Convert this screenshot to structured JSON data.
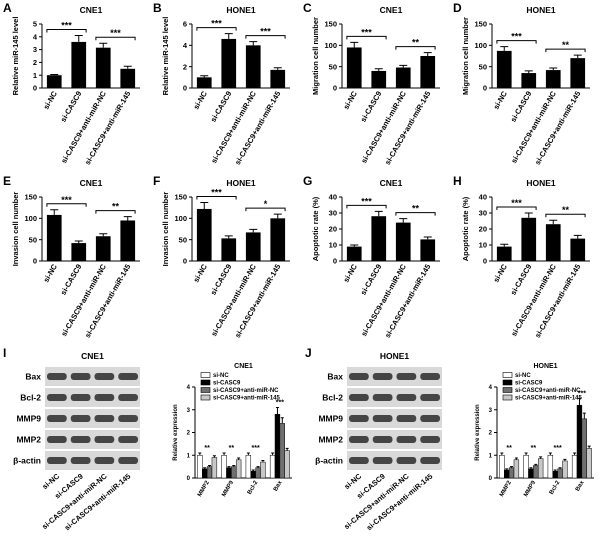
{
  "chart_data": [
    {
      "panel": "A",
      "type": "bar",
      "title": "CNE1",
      "y_label": "Relative miR-145 level",
      "categories": [
        "si-NC",
        "si-CASC9",
        "si-CASC9+anti-miR-NC",
        "si-CASC9+anti-miR-145"
      ],
      "values": [
        1,
        3.6,
        3.15,
        1.5
      ],
      "errors": [
        0.05,
        0.5,
        0.35,
        0.2
      ],
      "color": "#000000",
      "ylim": [
        0,
        5
      ],
      "yticks": [
        0,
        1,
        2,
        3,
        4,
        5
      ],
      "comparisons": [
        {
          "pair": [
            "si-NC",
            "si-CASC9"
          ],
          "label": "***"
        },
        {
          "pair": [
            "si-CASC9+anti-miR-NC",
            "si-CASC9+anti-miR-145"
          ],
          "label": "***"
        }
      ]
    },
    {
      "panel": "B",
      "type": "bar",
      "title": "HONE1",
      "y_label": "Relative miR-145 level",
      "categories": [
        "si-NC",
        "si-CASC9",
        "si-CASC9+anti-miR-NC",
        "si-CASC9+anti-miR-145"
      ],
      "values": [
        1,
        4.6,
        4.0,
        1.7
      ],
      "errors": [
        0.15,
        0.5,
        0.35,
        0.2
      ],
      "color": "#000000",
      "ylim": [
        0,
        6
      ],
      "yticks": [
        0,
        2,
        4,
        6
      ],
      "comparisons": [
        {
          "pair": [
            "si-NC",
            "si-CASC9"
          ],
          "label": "***"
        },
        {
          "pair": [
            "si-CASC9+anti-miR-NC",
            "si-CASC9+anti-miR-145"
          ],
          "label": "***"
        }
      ]
    },
    {
      "panel": "C",
      "type": "bar",
      "title": "CNE1",
      "y_label": "Migration cell number",
      "categories": [
        "si-NC",
        "si-CASC9",
        "si-CASC9+anti-miR-NC",
        "si-CASC9+anti-miR-145"
      ],
      "values": [
        95,
        40,
        48,
        75
      ],
      "errors": [
        12,
        5,
        5,
        8
      ],
      "color": "#000000",
      "ylim": [
        0,
        150
      ],
      "yticks": [
        0,
        50,
        100,
        150
      ],
      "comparisons": [
        {
          "pair": [
            "si-NC",
            "si-CASC9"
          ],
          "label": "***"
        },
        {
          "pair": [
            "si-CASC9+anti-miR-NC",
            "si-CASC9+anti-miR-145"
          ],
          "label": "**"
        }
      ]
    },
    {
      "panel": "D",
      "type": "bar",
      "title": "HONE1",
      "y_label": "Migration cell number",
      "categories": [
        "si-NC",
        "si-CASC9",
        "si-CASC9+anti-miR-NC",
        "si-CASC9+anti-miR-145"
      ],
      "values": [
        87,
        35,
        42,
        70
      ],
      "errors": [
        10,
        5,
        5,
        7
      ],
      "color": "#000000",
      "ylim": [
        0,
        150
      ],
      "yticks": [
        0,
        50,
        100,
        150
      ],
      "comparisons": [
        {
          "pair": [
            "si-NC",
            "si-CASC9"
          ],
          "label": "***"
        },
        {
          "pair": [
            "si-CASC9+anti-miR-NC",
            "si-CASC9+anti-miR-145"
          ],
          "label": "**"
        }
      ]
    },
    {
      "panel": "E",
      "type": "bar",
      "title": "CNE1",
      "y_label": "Invasion cell number",
      "categories": [
        "si-NC",
        "si-CASC9",
        "si-CASC9+anti-miR-NC",
        "si-CASC9+anti-miR-145"
      ],
      "values": [
        108,
        42,
        58,
        95
      ],
      "errors": [
        12,
        5,
        6,
        9
      ],
      "color": "#000000",
      "ylim": [
        0,
        150
      ],
      "yticks": [
        0,
        50,
        100,
        150
      ],
      "comparisons": [
        {
          "pair": [
            "si-NC",
            "si-CASC9"
          ],
          "label": "***"
        },
        {
          "pair": [
            "si-CASC9+anti-miR-NC",
            "si-CASC9+anti-miR-145"
          ],
          "label": "**"
        }
      ]
    },
    {
      "panel": "F",
      "type": "bar",
      "title": "HONE1",
      "y_label": "Invasion cell number",
      "categories": [
        "si-NC",
        "si-CASC9",
        "si-CASC9+anti-miR-NC",
        "si-CASC9+anti-miR-145"
      ],
      "values": [
        122,
        53,
        67,
        100
      ],
      "errors": [
        15,
        6,
        7,
        10
      ],
      "color": "#000000",
      "ylim": [
        0,
        150
      ],
      "yticks": [
        0,
        50,
        100,
        150
      ],
      "comparisons": [
        {
          "pair": [
            "si-NC",
            "si-CASC9"
          ],
          "label": "***"
        },
        {
          "pair": [
            "si-CASC9+anti-miR-NC",
            "si-CASC9+anti-miR-145"
          ],
          "label": "*"
        }
      ]
    },
    {
      "panel": "G",
      "type": "bar",
      "title": "CNE1",
      "y_label": "Apoptotic rate (%)",
      "categories": [
        "si-NC",
        "si-CASC9",
        "si-CASC9+anti-miR-NC",
        "si-CASC9+anti-miR-145"
      ],
      "values": [
        9,
        28,
        24,
        13.5
      ],
      "errors": [
        1,
        3,
        2.5,
        1.5
      ],
      "color": "#000000",
      "ylim": [
        0,
        40
      ],
      "yticks": [
        0,
        10,
        20,
        30,
        40
      ],
      "comparisons": [
        {
          "pair": [
            "si-NC",
            "si-CASC9"
          ],
          "label": "***"
        },
        {
          "pair": [
            "si-CASC9+anti-miR-NC",
            "si-CASC9+anti-miR-145"
          ],
          "label": "**"
        }
      ]
    },
    {
      "panel": "H",
      "type": "bar",
      "title": "HONE1",
      "y_label": "Apoptotic rate (%)",
      "categories": [
        "si-NC",
        "si-CASC9",
        "si-CASC9+anti-miR-NC",
        "si-CASC9+anti-miR-145"
      ],
      "values": [
        9,
        27,
        23,
        14
      ],
      "errors": [
        1.5,
        3,
        2.5,
        2
      ],
      "color": "#000000",
      "ylim": [
        0,
        40
      ],
      "yticks": [
        0,
        10,
        20,
        30,
        40
      ],
      "comparisons": [
        {
          "pair": [
            "si-NC",
            "si-CASC9"
          ],
          "label": "***"
        },
        {
          "pair": [
            "si-CASC9+anti-miR-NC",
            "si-CASC9+anti-miR-145"
          ],
          "label": "**"
        }
      ]
    },
    {
      "panel": "I",
      "type": "grouped-bar",
      "title": "CNE1",
      "y_label": "Relative expression",
      "categories": [
        "MMP2",
        "MMP9",
        "Bcl-2",
        "Bax"
      ],
      "series": [
        {
          "name": "si-NC",
          "color": "#ffffff",
          "values": [
            1,
            1,
            1,
            1
          ],
          "errors": [
            0.1,
            0.1,
            0.1,
            0.1
          ]
        },
        {
          "name": "si-CASC9",
          "color": "#000000",
          "values": [
            0.4,
            0.45,
            0.3,
            2.8
          ],
          "errors": [
            0.05,
            0.05,
            0.05,
            0.3
          ]
        },
        {
          "name": "si-CASC9+anti-miR-NC",
          "color": "#707070",
          "values": [
            0.5,
            0.5,
            0.45,
            2.4
          ],
          "errors": [
            0.05,
            0.05,
            0.05,
            0.25
          ]
        },
        {
          "name": "si-CASC9+anti-miR-145",
          "color": "#c8c8c8",
          "values": [
            0.9,
            0.8,
            0.7,
            1.2
          ],
          "errors": [
            0.08,
            0.08,
            0.07,
            0.1
          ]
        }
      ],
      "ylim": [
        0,
        4
      ],
      "yticks": [
        0,
        1,
        2,
        3,
        4
      ],
      "annotations": [
        {
          "category": "MMP2",
          "label": "**"
        },
        {
          "category": "MMP9",
          "label": "**"
        },
        {
          "category": "Bcl-2",
          "label": "***"
        },
        {
          "category": "Bax",
          "label": "***"
        }
      ],
      "blot": {
        "title": "CNE1",
        "rows": [
          "Bax",
          "Bcl-2",
          "MMP9",
          "MMP2",
          "β-actin"
        ],
        "lanes": [
          "si-NC",
          "si-CASC9",
          "si-CASC9+anti-miR-NC",
          "si-CASC9+anti-miR-145"
        ]
      }
    },
    {
      "panel": "J",
      "type": "grouped-bar",
      "title": "HONE1",
      "y_label": "Relative expression",
      "categories": [
        "MMP2",
        "MMP9",
        "Bcl-2",
        "Bax"
      ],
      "series": [
        {
          "name": "si-NC",
          "color": "#ffffff",
          "values": [
            1,
            1,
            1,
            1
          ],
          "errors": [
            0.1,
            0.1,
            0.1,
            0.1
          ]
        },
        {
          "name": "si-CASC9",
          "color": "#000000",
          "values": [
            0.35,
            0.4,
            0.3,
            3.2
          ],
          "errors": [
            0.05,
            0.05,
            0.05,
            0.3
          ]
        },
        {
          "name": "si-CASC9+anti-miR-NC",
          "color": "#707070",
          "values": [
            0.45,
            0.55,
            0.4,
            2.6
          ],
          "errors": [
            0.05,
            0.05,
            0.05,
            0.25
          ]
        },
        {
          "name": "si-CASC9+anti-miR-145",
          "color": "#c8c8c8",
          "values": [
            0.8,
            0.85,
            0.75,
            1.3
          ],
          "errors": [
            0.08,
            0.08,
            0.07,
            0.1
          ]
        }
      ],
      "ylim": [
        0,
        4
      ],
      "yticks": [
        0,
        1,
        2,
        3,
        4
      ],
      "annotations": [
        {
          "category": "MMP2",
          "label": "**"
        },
        {
          "category": "MMP9",
          "label": "**"
        },
        {
          "category": "Bcl-2",
          "label": "***"
        },
        {
          "category": "Bax",
          "label": "***"
        }
      ],
      "blot": {
        "title": "HONE1",
        "rows": [
          "Bax",
          "Bcl-2",
          "MMP9",
          "MMP2",
          "β-actin"
        ],
        "lanes": [
          "si-NC",
          "si-CASC9",
          "si-CASC9+anti-miR-NC",
          "si-CASC9+anti-miR-145"
        ]
      }
    }
  ]
}
